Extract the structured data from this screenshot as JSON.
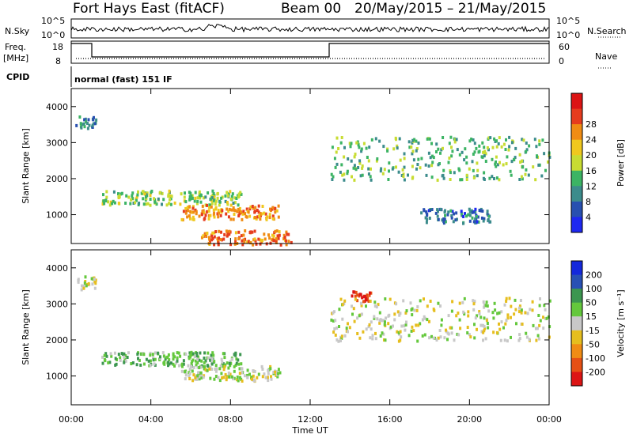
{
  "header": {
    "title": "Fort Hays East (fitACF)",
    "beam": "Beam 00",
    "date_range": "20/May/2015 – 21/May/2015"
  },
  "strips": {
    "nsky_label": "N.Sky",
    "nsky_ticks": [
      "10^5",
      "10^0"
    ],
    "nsearch_label": "N.Search",
    "nsearch_ticks": [
      "10^5",
      "10^0"
    ],
    "freq_label_1": "Freq.",
    "freq_label_2": "[MHz]",
    "freq_ticks": [
      "18",
      "8"
    ],
    "nave_label": "Nave",
    "nave_ticks": [
      "60",
      "0"
    ],
    "cpid_label": "CPID",
    "cpid_text": "normal (fast) 151 IF"
  },
  "chart_data": [
    {
      "type": "heatmap",
      "name": "power",
      "ylabel": "Slant Range [km]",
      "ylim": [
        200,
        4500
      ],
      "yticks": [
        1000,
        2000,
        3000,
        4000
      ],
      "xlim": [
        0,
        24
      ],
      "colorbar": {
        "label": "Power [dB]",
        "ticks": [
          4,
          8,
          12,
          16,
          20,
          24,
          28
        ],
        "colors": [
          "#1e28f0",
          "#2850b0",
          "#3c8c8c",
          "#3cb464",
          "#c8dc32",
          "#f0c81e",
          "#f08c14",
          "#e63c1e",
          "#dc1414"
        ]
      },
      "features": [
        {
          "label": "early band",
          "start_hour": 0.2,
          "end_hour": 1.2,
          "range_km": [
            3400,
            3800
          ],
          "power_db": 10
        },
        {
          "label": "evening band",
          "start_hour": 1.5,
          "end_hour": 8.5,
          "range_km": [
            1300,
            1700
          ],
          "power_db": 16
        },
        {
          "label": "strong echo",
          "start_hour": 5.5,
          "end_hour": 10.5,
          "range_km": [
            900,
            1300
          ],
          "power_db": 26
        },
        {
          "label": "near-range echo",
          "start_hour": 6.5,
          "end_hour": 11.0,
          "range_km": [
            200,
            600
          ],
          "power_db": 28
        },
        {
          "label": "morning band",
          "start_hour": 13.0,
          "end_hour": 24.0,
          "range_km": [
            2000,
            3200
          ],
          "power_db": 14
        },
        {
          "label": "late band",
          "start_hour": 17.5,
          "end_hour": 21.0,
          "range_km": [
            800,
            1200
          ],
          "power_db": 8
        }
      ]
    },
    {
      "type": "heatmap",
      "name": "velocity",
      "ylabel": "Slant Range [km]",
      "ylim": [
        200,
        4500
      ],
      "yticks": [
        1000,
        2000,
        3000,
        4000
      ],
      "xlim": [
        0,
        24
      ],
      "xticks": [
        "00:00",
        "04:00",
        "08:00",
        "12:00",
        "16:00",
        "20:00",
        "00:00"
      ],
      "xlabel": "Time UT",
      "colorbar": {
        "label": "Velocity [m s⁻¹]",
        "ticks": [
          200,
          100,
          50,
          15,
          -15,
          -50,
          -100,
          -200
        ],
        "colors": [
          "#1428dc",
          "#2850b4",
          "#3c9650",
          "#64c83c",
          "#c8c8c8",
          "#e6be1e",
          "#f08c14",
          "#e65014",
          "#dc1414"
        ]
      },
      "features": [
        {
          "label": "early band",
          "start_hour": 0.2,
          "end_hour": 1.2,
          "range_km": [
            3400,
            3800
          ],
          "velocity": 0
        },
        {
          "label": "evening band",
          "start_hour": 1.5,
          "end_hour": 8.5,
          "range_km": [
            1300,
            1700
          ],
          "velocity": 40
        },
        {
          "label": "strong echo",
          "start_hour": 5.5,
          "end_hour": 10.5,
          "range_km": [
            900,
            1300
          ],
          "velocity": 0
        },
        {
          "label": "red patch",
          "start_hour": 14.0,
          "end_hour": 15.0,
          "range_km": [
            3100,
            3400
          ],
          "velocity": -200
        },
        {
          "label": "morning band",
          "start_hour": 13.0,
          "end_hour": 24.0,
          "range_km": [
            2000,
            3200
          ],
          "velocity": 0
        }
      ]
    }
  ]
}
